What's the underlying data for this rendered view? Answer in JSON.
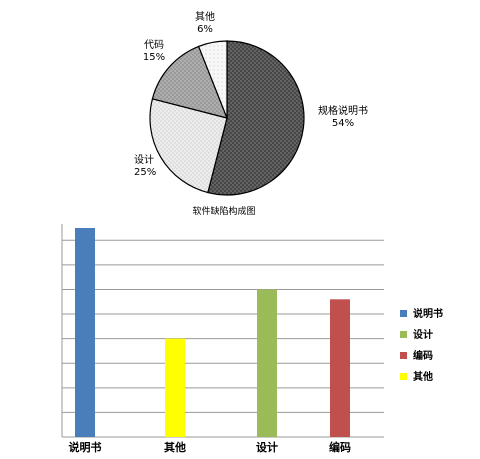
{
  "chart_data": [
    {
      "type": "pie",
      "title": "软件缺陷构成图",
      "slices": [
        {
          "label": "规格说明书",
          "percent": "54%",
          "value": 54,
          "pattern": "pat-dark"
        },
        {
          "label": "设计",
          "percent": "25%",
          "value": 25,
          "pattern": "pat-light"
        },
        {
          "label": "代码",
          "percent": "15%",
          "value": 15,
          "pattern": "pat-mid"
        },
        {
          "label": "其他",
          "percent": "6%",
          "value": 6,
          "pattern": "pat-faint"
        }
      ]
    },
    {
      "type": "bar",
      "categories": [
        "说明书",
        "其他",
        "设计",
        "编码"
      ],
      "series": [
        {
          "name": "说明书",
          "values": [
            8.5,
            null,
            null,
            null
          ],
          "color": "#4a7ebb"
        },
        {
          "name": "设计",
          "values": [
            null,
            null,
            6.0,
            null
          ],
          "color": "#9bbb59"
        },
        {
          "name": "编码",
          "values": [
            null,
            null,
            null,
            5.6
          ],
          "color": "#c0504d"
        },
        {
          "name": "其他",
          "values": [
            null,
            4.0,
            null,
            null
          ],
          "color": "#ffff00"
        }
      ],
      "ylim": [
        0,
        8.5
      ],
      "gridlines": 8,
      "legend_position": "right"
    }
  ]
}
